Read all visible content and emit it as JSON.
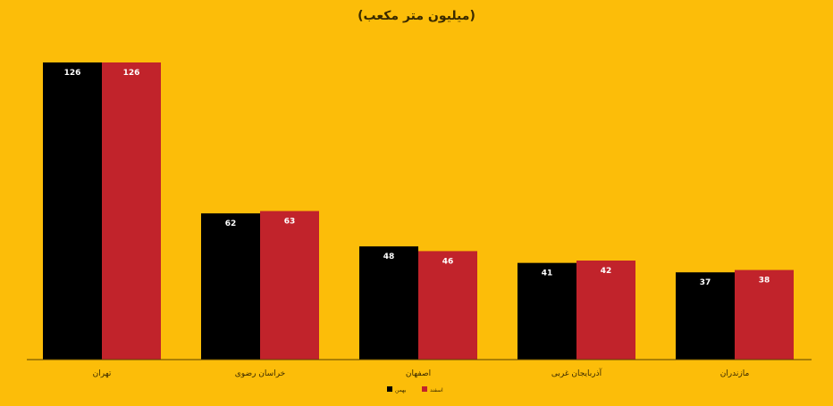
{
  "chart_data": {
    "type": "bar",
    "subtitle": "(میلیون متر مکعب)",
    "categories": [
      "تهران",
      "خراسان رضوی",
      "اصفهان",
      "آذربایجان غربی",
      "مازندران"
    ],
    "series": [
      {
        "name": "بهمن",
        "color": "#000000",
        "values": [
          126,
          62,
          48,
          41,
          37
        ]
      },
      {
        "name": "اسفند",
        "color": "#c1232b",
        "values": [
          126,
          63,
          46,
          42,
          38
        ]
      }
    ],
    "ylim": [
      0,
      140
    ],
    "grid": false,
    "legend": "bottom-center",
    "colors": {
      "background": "#fcbd09",
      "value_label": "#ffffff",
      "axis": "#5a4300"
    }
  }
}
